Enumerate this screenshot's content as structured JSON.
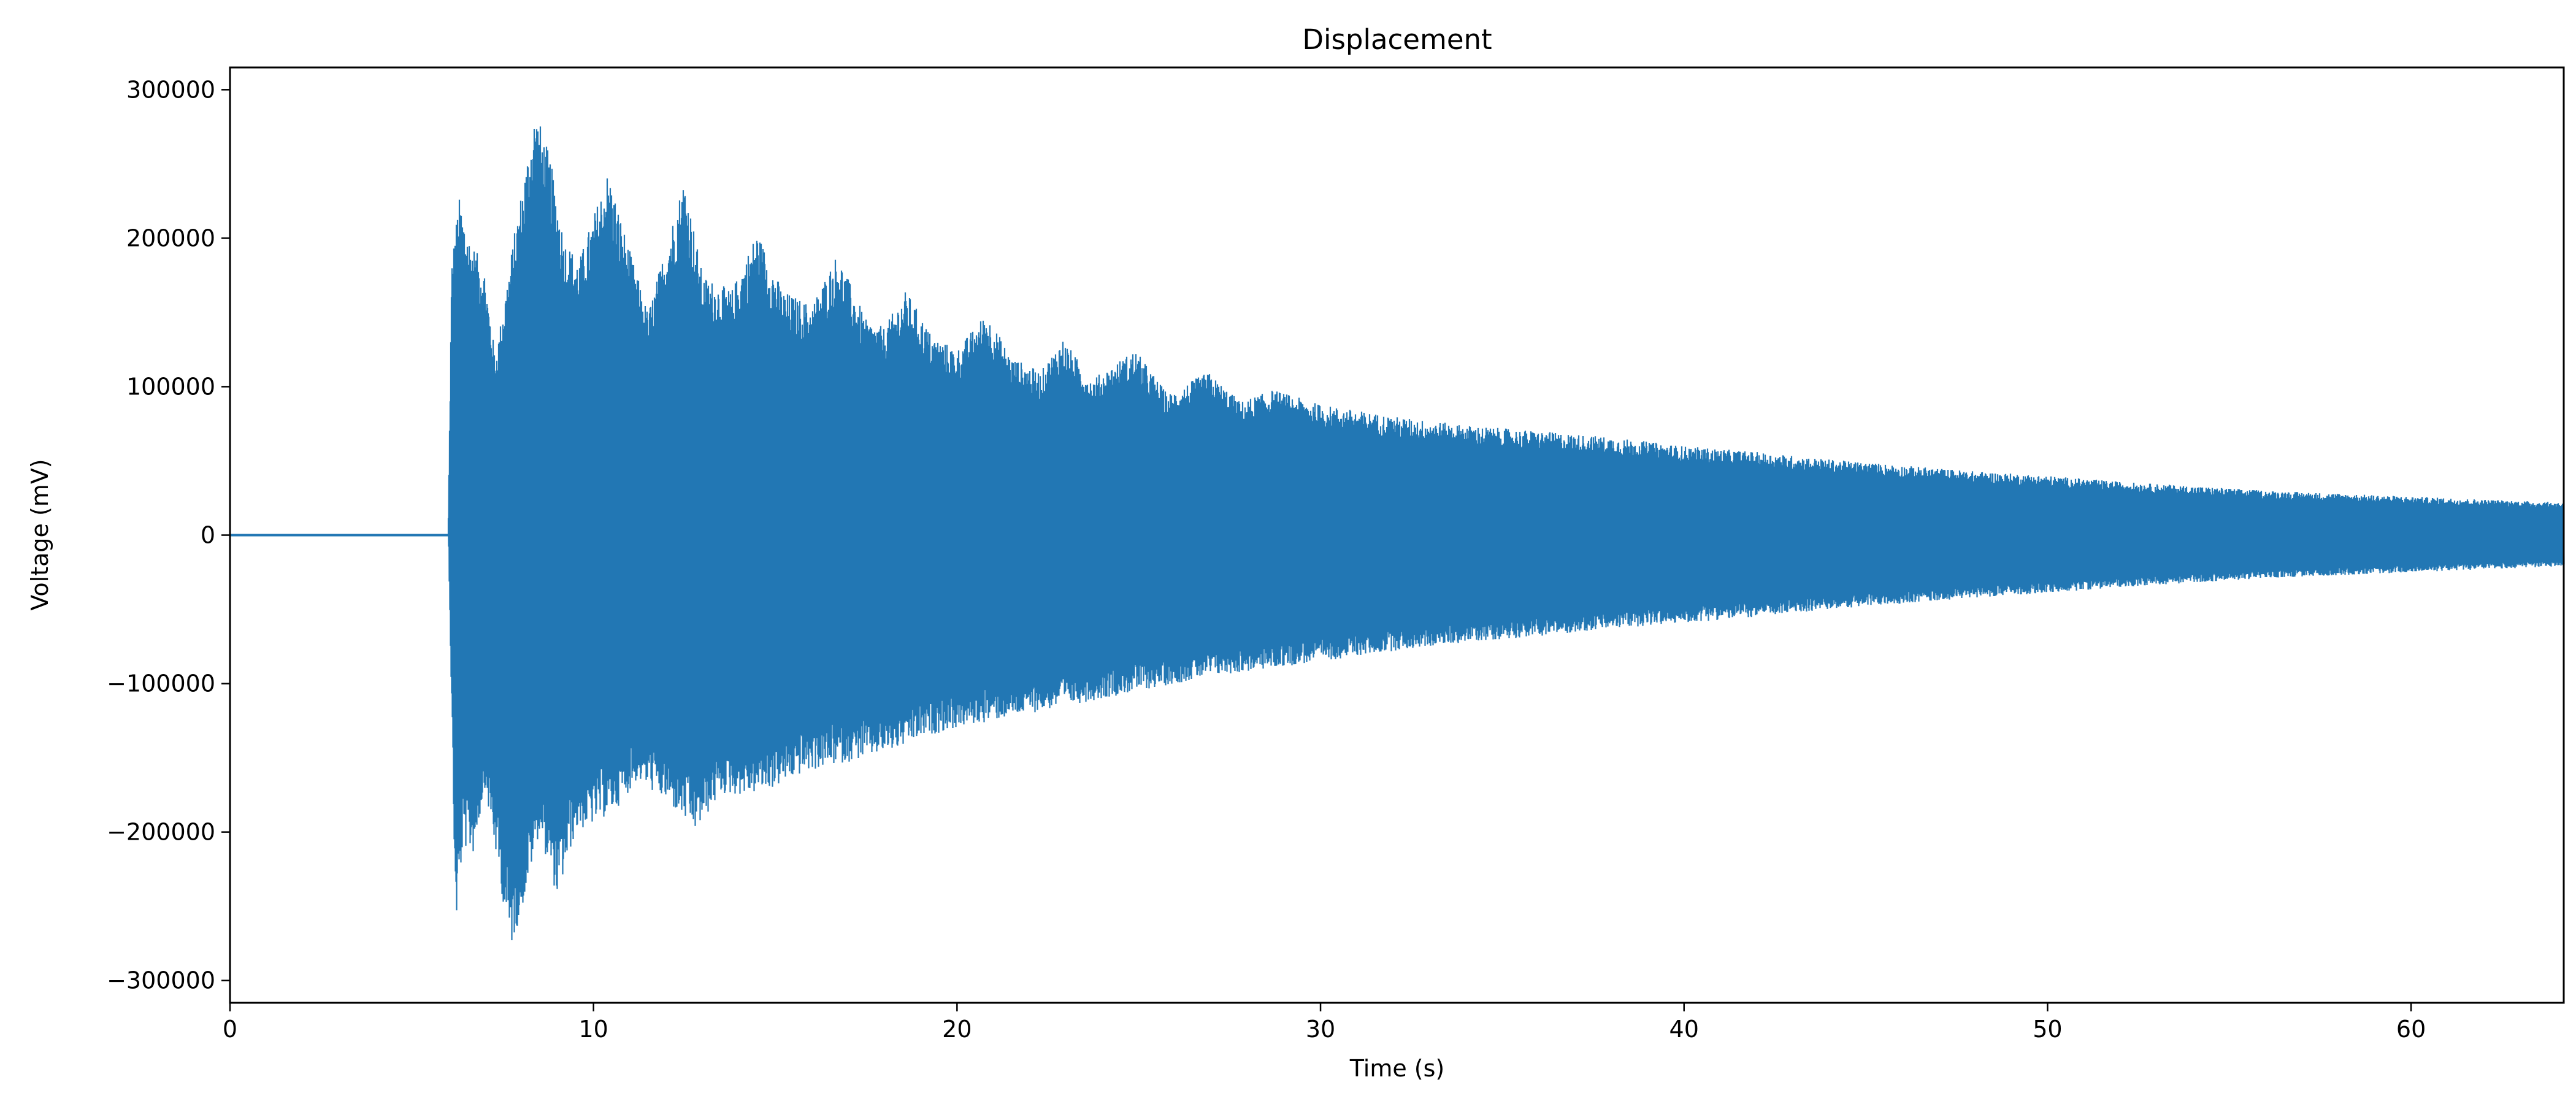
{
  "chart_data": {
    "type": "line",
    "title": "Displacement",
    "xlabel": "Time (s)",
    "ylabel": "Voltage (mV)",
    "xlim": [
      0,
      64.2
    ],
    "ylim": [
      -315000,
      315000
    ],
    "xticks": [
      0,
      10,
      20,
      30,
      40,
      50,
      60
    ],
    "yticks": [
      300000,
      200000,
      100000,
      0,
      -100000,
      -200000,
      -300000
    ],
    "ytick_labels": [
      "300000",
      "200000",
      "100000",
      "0",
      "−100000",
      "−200000",
      "−300000"
    ],
    "grid": false,
    "legend": "none",
    "series": [
      {
        "color": "#2277b4",
        "description_note": "",
        "flat_segment": {
          "x": [
            0,
            6.0
          ],
          "y": 0
        },
        "upper_envelope": [
          [
            6.0,
            0
          ],
          [
            6.1,
            185000
          ],
          [
            6.3,
            228000
          ],
          [
            6.6,
            200000
          ],
          [
            7.0,
            180000
          ],
          [
            7.3,
            120000
          ],
          [
            7.8,
            200000
          ],
          [
            8.4,
            288000
          ],
          [
            8.8,
            255000
          ],
          [
            9.2,
            200000
          ],
          [
            9.6,
            185000
          ],
          [
            10.4,
            246000
          ],
          [
            10.9,
            200000
          ],
          [
            11.5,
            150000
          ],
          [
            12.5,
            242000
          ],
          [
            13.0,
            175000
          ],
          [
            13.8,
            165000
          ],
          [
            14.5,
            205000
          ],
          [
            15.2,
            165000
          ],
          [
            16.0,
            155000
          ],
          [
            16.7,
            190000
          ],
          [
            17.5,
            145000
          ],
          [
            18.0,
            140000
          ],
          [
            18.6,
            165000
          ],
          [
            19.3,
            135000
          ],
          [
            20.0,
            125000
          ],
          [
            20.8,
            150000
          ],
          [
            21.5,
            120000
          ],
          [
            22.3,
            110000
          ],
          [
            22.9,
            133000
          ],
          [
            23.7,
            105000
          ],
          [
            24.9,
            125000
          ],
          [
            25.8,
            95000
          ],
          [
            26.9,
            110000
          ],
          [
            27.8,
            90000
          ],
          [
            28.7,
            98000
          ],
          [
            30.0,
            88000
          ],
          [
            32.0,
            80000
          ],
          [
            34.0,
            74000
          ],
          [
            36.0,
            70000
          ],
          [
            38.0,
            66000
          ],
          [
            40.0,
            60000
          ],
          [
            42.0,
            56000
          ],
          [
            44.0,
            51000
          ],
          [
            46.0,
            47000
          ],
          [
            48.0,
            43000
          ],
          [
            50.0,
            40000
          ],
          [
            52.0,
            36000
          ],
          [
            54.0,
            33000
          ],
          [
            56.0,
            30000
          ],
          [
            58.0,
            28000
          ],
          [
            60.0,
            26000
          ],
          [
            62.0,
            24000
          ],
          [
            64.2,
            22000
          ]
        ],
        "lower_envelope": [
          [
            6.0,
            0
          ],
          [
            6.2,
            -266000
          ],
          [
            6.4,
            -210000
          ],
          [
            6.7,
            -215000
          ],
          [
            7.0,
            -170000
          ],
          [
            7.4,
            -230000
          ],
          [
            7.7,
            -280000
          ],
          [
            8.0,
            -255000
          ],
          [
            8.5,
            -200000
          ],
          [
            9.0,
            -245000
          ],
          [
            9.5,
            -200000
          ],
          [
            10.0,
            -195000
          ],
          [
            10.6,
            -185000
          ],
          [
            11.2,
            -165000
          ],
          [
            12.0,
            -180000
          ],
          [
            12.8,
            -200000
          ],
          [
            13.5,
            -175000
          ],
          [
            14.3,
            -175000
          ],
          [
            15.0,
            -170000
          ],
          [
            15.8,
            -160000
          ],
          [
            16.6,
            -155000
          ],
          [
            17.5,
            -150000
          ],
          [
            18.3,
            -145000
          ],
          [
            19.2,
            -135000
          ],
          [
            20.0,
            -130000
          ],
          [
            21.0,
            -125000
          ],
          [
            22.0,
            -120000
          ],
          [
            23.0,
            -115000
          ],
          [
            24.0,
            -110000
          ],
          [
            25.0,
            -105000
          ],
          [
            26.0,
            -100000
          ],
          [
            27.0,
            -95000
          ],
          [
            28.0,
            -92000
          ],
          [
            30.0,
            -85000
          ],
          [
            32.0,
            -78000
          ],
          [
            34.0,
            -72000
          ],
          [
            36.0,
            -68000
          ],
          [
            38.0,
            -63000
          ],
          [
            40.0,
            -59000
          ],
          [
            42.0,
            -55000
          ],
          [
            44.0,
            -50000
          ],
          [
            46.0,
            -46000
          ],
          [
            48.0,
            -42000
          ],
          [
            50.0,
            -39000
          ],
          [
            52.0,
            -35000
          ],
          [
            54.0,
            -32000
          ],
          [
            56.0,
            -29000
          ],
          [
            58.0,
            -27000
          ],
          [
            60.0,
            -25000
          ],
          [
            62.0,
            -23000
          ],
          [
            64.2,
            -21000
          ]
        ]
      }
    ]
  }
}
